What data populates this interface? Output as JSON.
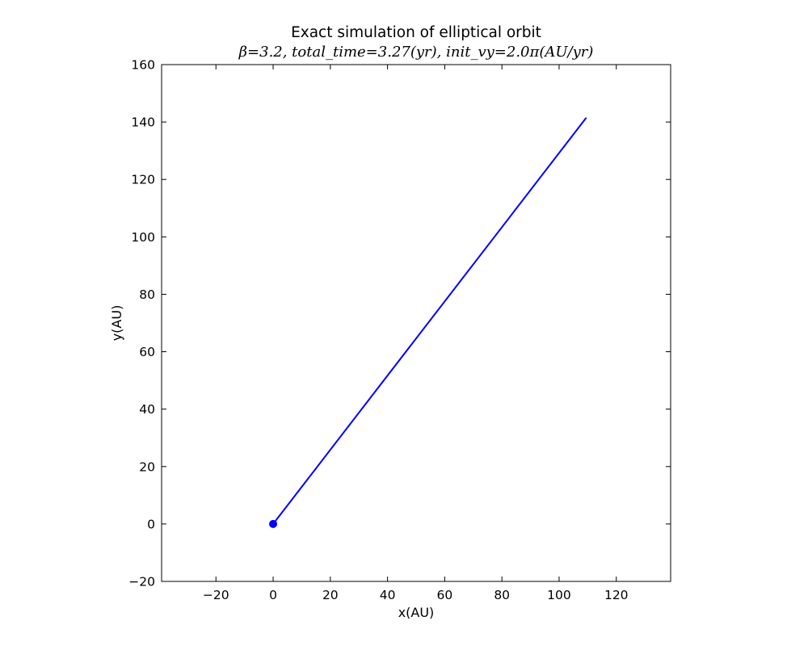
{
  "chart_data": {
    "type": "line",
    "title": "Exact simulation of elliptical orbit",
    "subtitle": "β=3.2, total_time=3.27(yr), init_vy=2.0π(AU/yr)",
    "xlabel": "x(AU)",
    "ylabel": "y(AU)",
    "xlim": [
      -39,
      139
    ],
    "ylim": [
      -20,
      160
    ],
    "xticks": [
      -20,
      0,
      20,
      40,
      60,
      80,
      100,
      120
    ],
    "yticks": [
      -20,
      0,
      20,
      40,
      60,
      80,
      100,
      120,
      140,
      160
    ],
    "xtick_labels": [
      "−20",
      "0",
      "20",
      "40",
      "60",
      "80",
      "100",
      "120"
    ],
    "ytick_labels": [
      "−20",
      "0",
      "20",
      "40",
      "60",
      "80",
      "100",
      "120",
      "140",
      "160"
    ],
    "grid": false,
    "series": [
      {
        "color": "#0000ff",
        "x": [
          0,
          109.5
        ],
        "y": [
          0,
          141.5
        ]
      }
    ],
    "markers": [
      {
        "x": 0,
        "y": 0,
        "color": "#0000ff"
      }
    ]
  }
}
